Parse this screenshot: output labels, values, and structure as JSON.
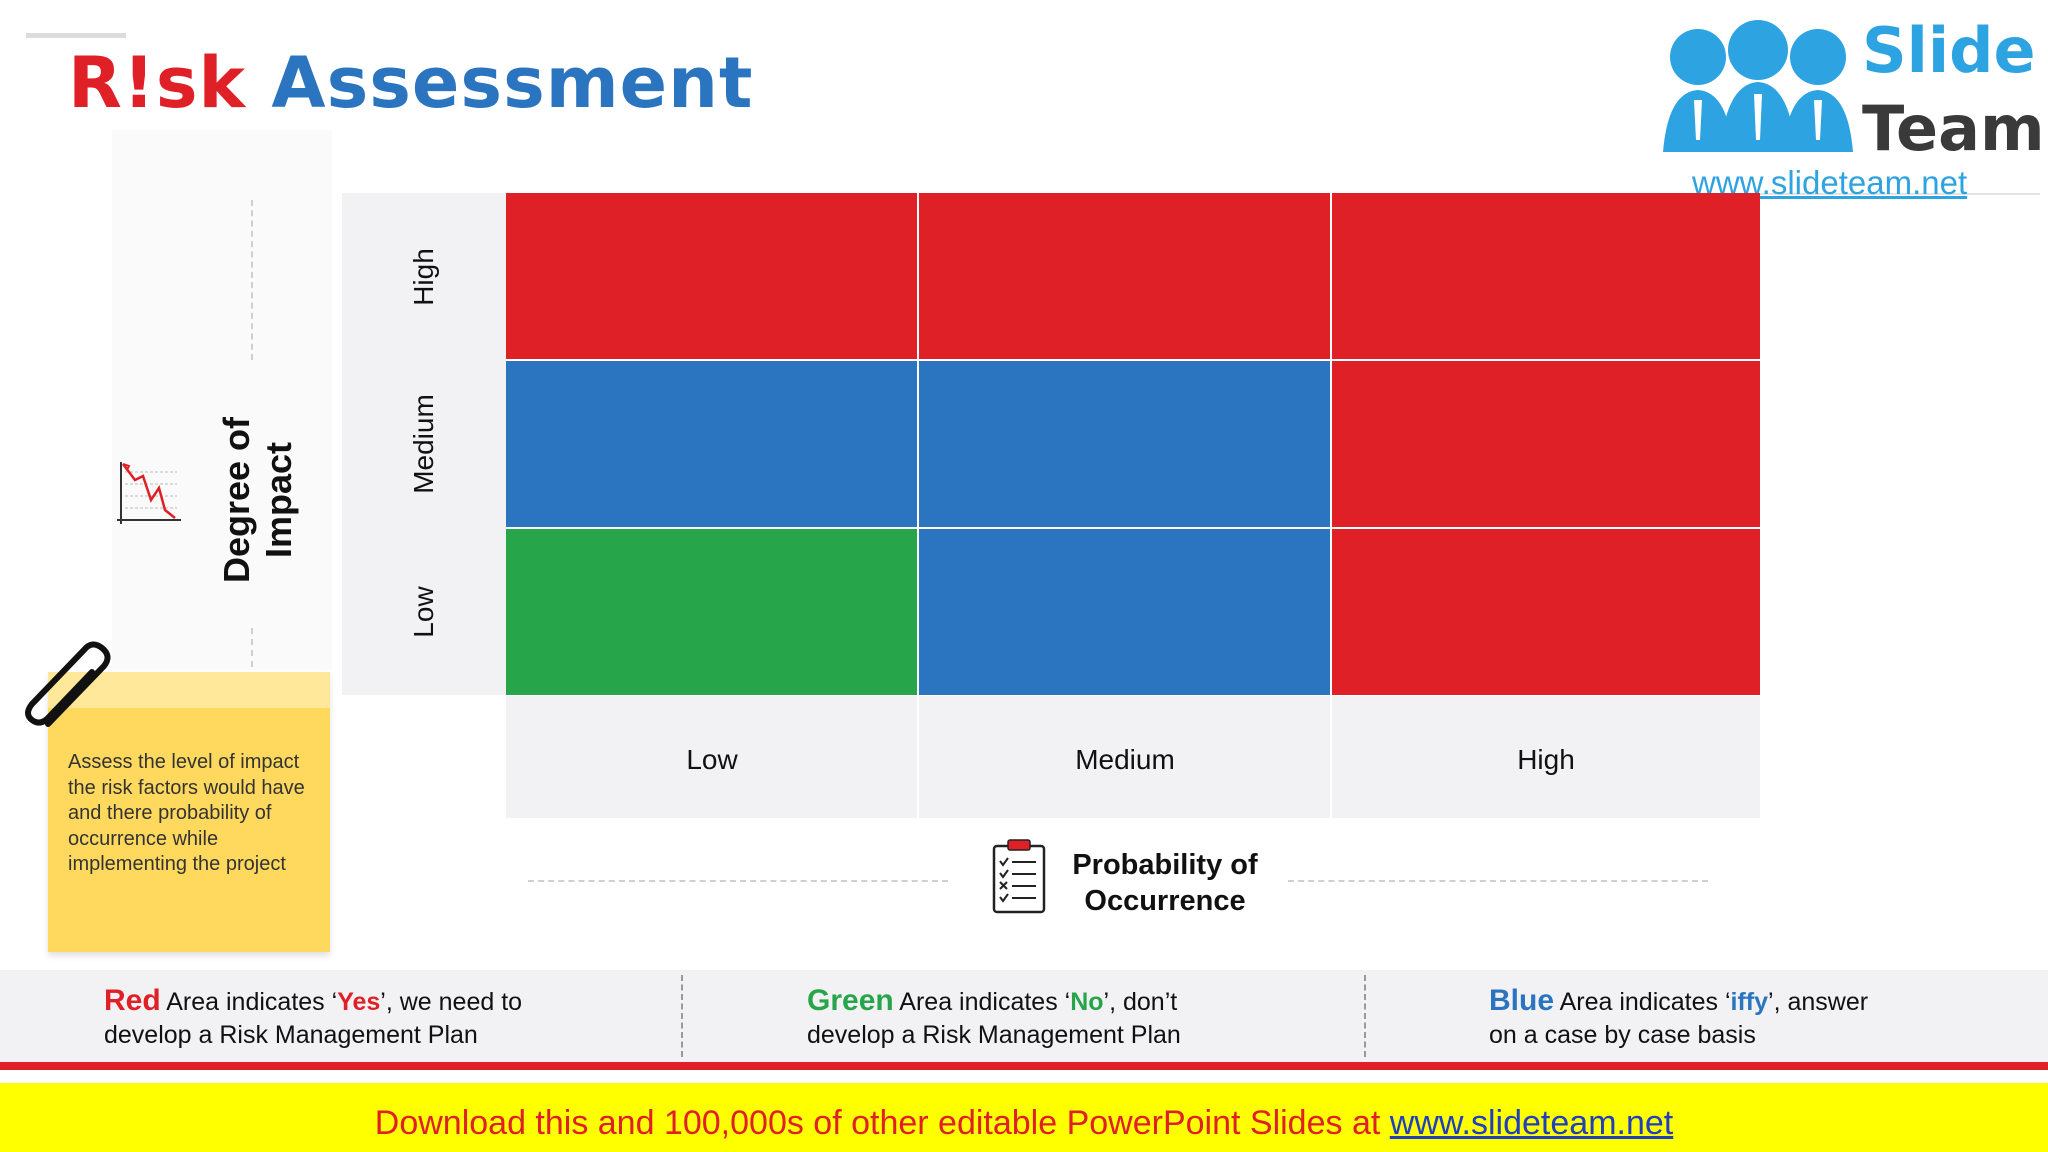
{
  "title": {
    "part1": "R!sk",
    "part2": "Assessment"
  },
  "logo": {
    "line1": "Slide",
    "line2": "Team",
    "url": "www.slideteam.net"
  },
  "matrix": {
    "y_axis_title": "Degree of Impact",
    "x_axis_title": "Probability of Occurrence",
    "y_levels": [
      "High",
      "Medium",
      "Low"
    ],
    "x_levels": [
      "Low",
      "Medium",
      "High"
    ],
    "cell_levels": [
      [
        "red",
        "red",
        "red"
      ],
      [
        "blue",
        "blue",
        "red"
      ],
      [
        "green",
        "blue",
        "red"
      ]
    ],
    "colors": {
      "red": "#e02027",
      "blue": "#2b74bf",
      "green": "#27a54a"
    }
  },
  "note": {
    "text": "Assess the level of impact the risk factors would have and there probability of occurrence while implementing the project"
  },
  "legend": [
    {
      "key": "Red",
      "key_color": "#e02027",
      "line1_pre": " Area indicates ‘",
      "value": "Yes",
      "line1_post": "’, we need to",
      "line2": "develop a  Risk Management Plan"
    },
    {
      "key": "Green",
      "key_color": "#27a54a",
      "line1_pre": " Area indicates ‘",
      "value": "No",
      "line1_post": "’, don’t",
      "line2": "develop a Risk Management Plan"
    },
    {
      "key": "Blue",
      "key_color": "#2b74bf",
      "line1_pre": " Area indicates ‘",
      "value": "iffy",
      "line1_post": "’, answer",
      "line2": "on a case by case basis"
    }
  ],
  "banner": {
    "text": "Download this and 100,000s of other editable PowerPoint Slides at ",
    "link": "www.slideteam.net"
  }
}
